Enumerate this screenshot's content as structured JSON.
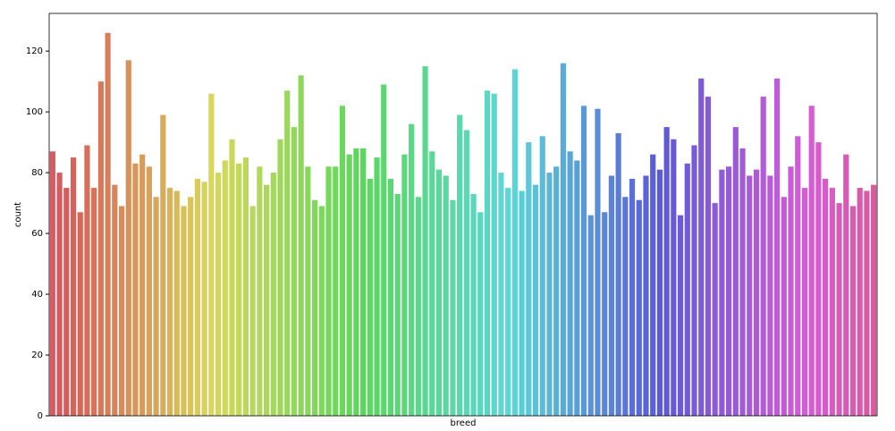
{
  "chart_data": {
    "type": "bar",
    "xlabel": "breed",
    "ylabel": "count",
    "palette": "husl",
    "categories": [
      null,
      null,
      null,
      null,
      null,
      null,
      null,
      null,
      null,
      null,
      null,
      null,
      null,
      null,
      null,
      null,
      null,
      null,
      null,
      null,
      null,
      null,
      null,
      null,
      null,
      null,
      null,
      null,
      null,
      null,
      null,
      null,
      null,
      null,
      null,
      null,
      null,
      null,
      null,
      null,
      null,
      null,
      null,
      null,
      null,
      null,
      null,
      null,
      null,
      null,
      null,
      null,
      null,
      null,
      null,
      null,
      null,
      null,
      null,
      null,
      null,
      null,
      null,
      null,
      null,
      null,
      null,
      null,
      null,
      null,
      null,
      null,
      null,
      null,
      null,
      null,
      null,
      null,
      null,
      null,
      null,
      null,
      null,
      null,
      null,
      null,
      null,
      null,
      null,
      null,
      null,
      null,
      null,
      null,
      null,
      null,
      null,
      null,
      null,
      null,
      null,
      null,
      null,
      null,
      null,
      null,
      null,
      null,
      null,
      null,
      null,
      null,
      null,
      null,
      null,
      null,
      null,
      null,
      null,
      null
    ],
    "values": [
      87,
      80,
      75,
      85,
      67,
      89,
      75,
      110,
      126,
      76,
      69,
      117,
      83,
      86,
      82,
      72,
      99,
      75,
      74,
      69,
      72,
      78,
      77,
      106,
      80,
      84,
      91,
      83,
      85,
      69,
      82,
      76,
      80,
      91,
      107,
      95,
      112,
      82,
      71,
      69,
      82,
      82,
      102,
      86,
      88,
      88,
      78,
      85,
      109,
      78,
      73,
      86,
      96,
      72,
      115,
      87,
      81,
      79,
      71,
      99,
      94,
      73,
      67,
      107,
      106,
      80,
      75,
      114,
      74,
      90,
      76,
      92,
      80,
      82,
      116,
      87,
      84,
      102,
      66,
      101,
      67,
      79,
      93,
      72,
      78,
      71,
      79,
      86,
      81,
      95,
      91,
      66,
      83,
      89,
      111,
      105,
      70,
      81,
      82,
      95,
      88,
      79,
      81,
      105,
      79,
      111,
      72,
      82,
      92,
      75,
      102,
      90,
      78,
      75,
      70,
      86,
      69,
      75,
      74,
      76
    ],
    "ylim": [
      0,
      132.4
    ],
    "yticks": [
      0,
      20,
      40,
      60,
      80,
      100,
      120
    ]
  }
}
